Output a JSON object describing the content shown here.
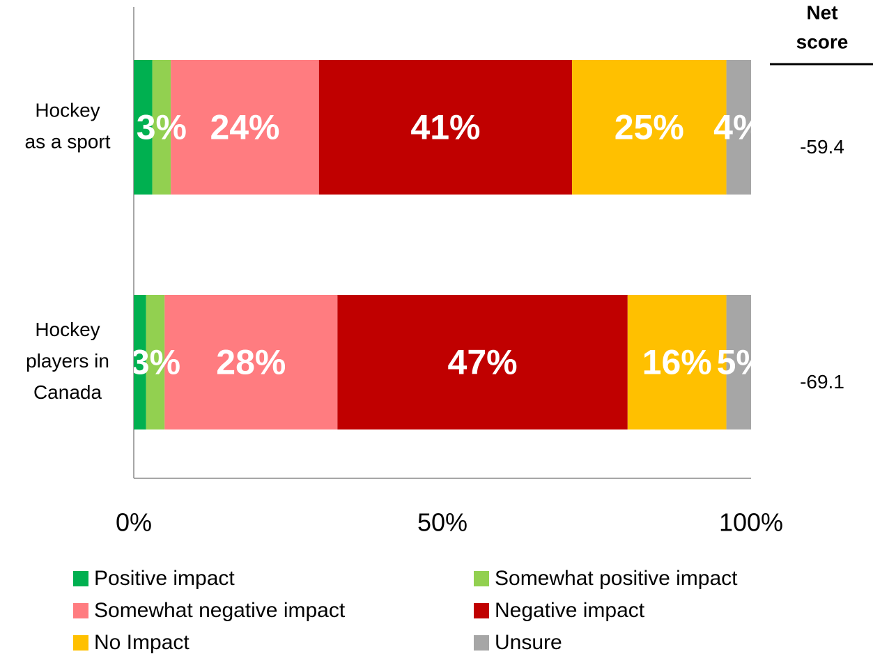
{
  "chart_data": {
    "type": "stacked_barh",
    "categories": [
      [
        "Hockey",
        "as a sport"
      ],
      [
        "Hockey",
        "players in",
        "Canada"
      ]
    ],
    "series": [
      {
        "name": "Positive impact",
        "color": "#00b050",
        "values": [
          3,
          2
        ],
        "value_labels": [
          null,
          null
        ]
      },
      {
        "name": "Somewhat positive impact",
        "color": "#92d050",
        "values": [
          3,
          3
        ],
        "value_labels": [
          "3%",
          "3%"
        ]
      },
      {
        "name": "Somewhat negative impact",
        "color": "#ff7c80",
        "values": [
          24,
          28
        ],
        "value_labels": [
          "24%",
          "28%"
        ]
      },
      {
        "name": "Negative impact",
        "color": "#c00000",
        "values": [
          41,
          47
        ],
        "value_labels": [
          "41%",
          "47%"
        ]
      },
      {
        "name": "No Impact",
        "color": "#ffc000",
        "values": [
          25,
          16
        ],
        "value_labels": [
          "25%",
          "16%"
        ]
      },
      {
        "name": "Unsure",
        "color": "#a6a6a6",
        "values": [
          4,
          5
        ],
        "value_labels": [
          "4%",
          "5%"
        ]
      }
    ],
    "xlim": [
      0,
      100
    ],
    "xticks": [
      {
        "value": 0,
        "label": "0%"
      },
      {
        "value": 50,
        "label": "50%"
      },
      {
        "value": 100,
        "label": "100%"
      }
    ],
    "net_score_header": [
      "Net",
      "score"
    ],
    "net_scores": [
      "-59.4",
      "-69.1"
    ]
  }
}
